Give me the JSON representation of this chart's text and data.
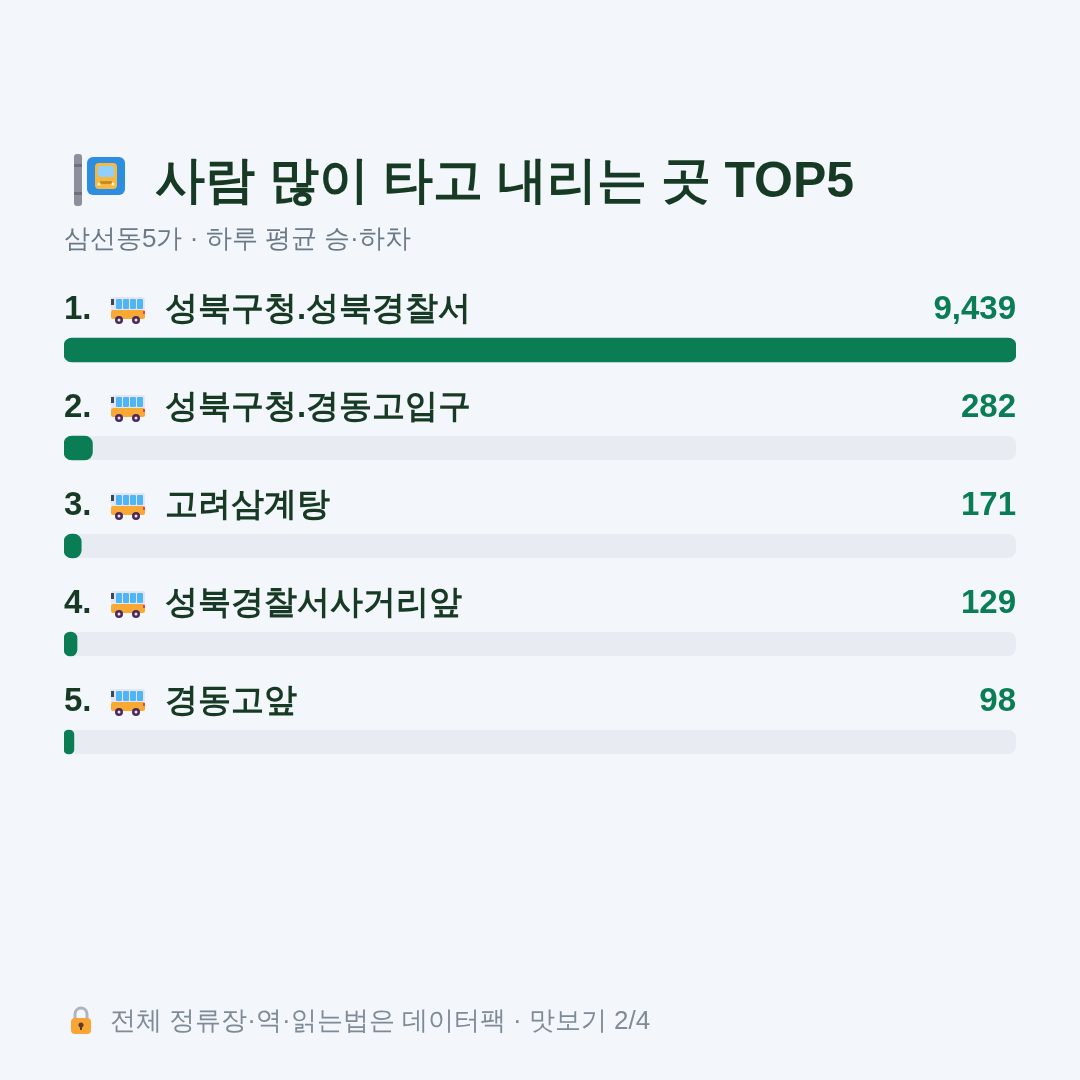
{
  "chart_data": {
    "type": "bar",
    "orientation": "horizontal",
    "title": "사람 많이 타고 내리는 곳 TOP5",
    "subtitle": "삼선동5가 · 하루 평균 승·하차",
    "categories": [
      "1. 성북구청.성북경찰서",
      "2. 성북구청.경동고입구",
      "3. 고려삼계탕",
      "4. 성북경찰서사거리앞",
      "5. 경동고앞"
    ],
    "values": [
      9439,
      282,
      171,
      129,
      98
    ],
    "value_labels": [
      "9,439",
      "282",
      "171",
      "129",
      "98"
    ],
    "color": "#0b7d55",
    "tick_labels": false,
    "annotations": [
      "전체 정류장·역·읽는법은 데이터팩 · 맛보기 2/4"
    ]
  }
}
